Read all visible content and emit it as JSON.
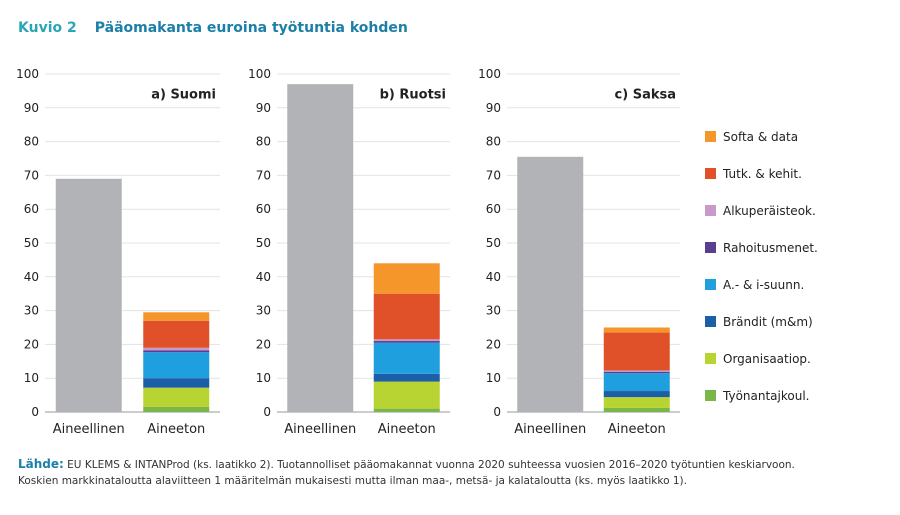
{
  "header": {
    "figure_number": "Kuvio 2",
    "title": "Pääomakanta euroina työtuntia kohden"
  },
  "footer": {
    "source_label": "Lähde:",
    "source_text": "EU KLEMS & INTANProd (ks. laatikko 2). Tuotannolliset pääomakannat vuonna 2020 suhteessa vuosien 2016–2020 työtuntien keskiarvoon.",
    "note": "Koskien markkinataloutta alaviitteen 1 määritelmän mukaisesti mutta ilman maa-, metsä- ja kalataloutta (ks. myös laatikko 1)."
  },
  "colors": {
    "Aineellinen": "#b1b3b6",
    "Työnantajkoul.": "#7ab648",
    "Organisaatiop.": "#b8d433",
    "Brändit (m&m)": "#1c5ea8",
    "A.- & i-suunn.": "#1f9fde",
    "Rahoitusmenet.": "#5a3e91",
    "Alkuperäisteok.": "#c79ac9",
    "Tutk. & kehit.": "#e0512a",
    "Softa & data": "#f5962a"
  },
  "chart_data": [
    {
      "type": "bar",
      "stacked": true,
      "panel_label": "a) Suomi",
      "categories": [
        "Aineellinen",
        "Aineeton"
      ],
      "ylim": [
        0,
        100
      ],
      "yticks": [
        "0",
        "10",
        "20",
        "30",
        "40",
        "50",
        "60",
        "70",
        "80",
        "90",
        "100"
      ],
      "grid": true,
      "series": [
        {
          "name": "Aineellinen",
          "values": [
            69,
            0
          ]
        },
        {
          "name": "Työnantajkoul.",
          "values": [
            0,
            1.5
          ]
        },
        {
          "name": "Organisaatiop.",
          "values": [
            0,
            5.7
          ]
        },
        {
          "name": "Brändit (m&m)",
          "values": [
            0,
            2.8
          ]
        },
        {
          "name": "A.- & i-suunn.",
          "values": [
            0,
            7.7
          ]
        },
        {
          "name": "Rahoitusmenet.",
          "values": [
            0,
            0.5
          ]
        },
        {
          "name": "Alkuperäisteok.",
          "values": [
            0,
            0.8
          ]
        },
        {
          "name": "Tutk. & kehit.",
          "values": [
            0,
            8
          ]
        },
        {
          "name": "Softa & data",
          "values": [
            0,
            2.5
          ]
        }
      ]
    },
    {
      "type": "bar",
      "stacked": true,
      "panel_label": "b) Ruotsi",
      "categories": [
        "Aineellinen",
        "Aineeton"
      ],
      "ylim": [
        0,
        100
      ],
      "yticks": [
        "0",
        "10",
        "20",
        "30",
        "40",
        "50",
        "60",
        "70",
        "80",
        "90",
        "100"
      ],
      "grid": true,
      "series": [
        {
          "name": "Aineellinen",
          "values": [
            97,
            0
          ]
        },
        {
          "name": "Työnantajkoul.",
          "values": [
            0,
            1
          ]
        },
        {
          "name": "Organisaatiop.",
          "values": [
            0,
            8
          ]
        },
        {
          "name": "Brändit (m&m)",
          "values": [
            0,
            2.3
          ]
        },
        {
          "name": "A.- & i-suunn.",
          "values": [
            0,
            9.2
          ]
        },
        {
          "name": "Rahoitusmenet.",
          "values": [
            0,
            0.5
          ]
        },
        {
          "name": "Alkuperäisteok.",
          "values": [
            0,
            0.5
          ]
        },
        {
          "name": "Tutk. & kehit.",
          "values": [
            0,
            13.5
          ]
        },
        {
          "name": "Softa & data",
          "values": [
            0,
            9
          ]
        }
      ]
    },
    {
      "type": "bar",
      "stacked": true,
      "panel_label": "c) Saksa",
      "categories": [
        "Aineellinen",
        "Aineeton"
      ],
      "ylim": [
        0,
        100
      ],
      "yticks": [
        "0",
        "10",
        "20",
        "30",
        "40",
        "50",
        "60",
        "70",
        "80",
        "90",
        "100"
      ],
      "grid": true,
      "series": [
        {
          "name": "Aineellinen",
          "values": [
            75.5,
            0
          ]
        },
        {
          "name": "Työnantajkoul.",
          "values": [
            0,
            1.2
          ]
        },
        {
          "name": "Organisaatiop.",
          "values": [
            0,
            3.2
          ]
        },
        {
          "name": "Brändit (m&m)",
          "values": [
            0,
            1.8
          ]
        },
        {
          "name": "A.- & i-suunn.",
          "values": [
            0,
            5.3
          ]
        },
        {
          "name": "Rahoitusmenet.",
          "values": [
            0,
            0.4
          ]
        },
        {
          "name": "Alkuperäisteok.",
          "values": [
            0,
            0.4
          ]
        },
        {
          "name": "Tutk. & kehit.",
          "values": [
            0,
            11.2
          ]
        },
        {
          "name": "Softa & data",
          "values": [
            0,
            1.5
          ]
        }
      ]
    }
  ],
  "legend": {
    "position": "right",
    "items": [
      "Softa & data",
      "Tutk. & kehit.",
      "Alkuperäisteok.",
      "Rahoitusmenet.",
      "A.- & i-suunn.",
      "Brändit (m&m)",
      "Organisaatiop.",
      "Työnantajkoul."
    ]
  }
}
